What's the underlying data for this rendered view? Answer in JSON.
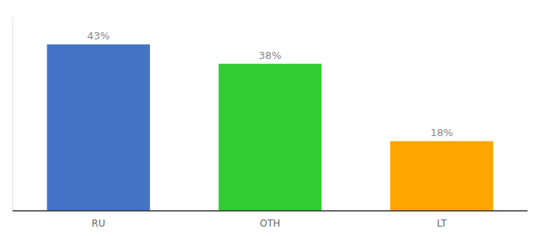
{
  "chart_data": {
    "type": "bar",
    "categories": [
      "RU",
      "OTH",
      "LT"
    ],
    "values": [
      43,
      38,
      18
    ],
    "value_labels": [
      "43%",
      "38%",
      "18%"
    ],
    "colors": [
      "#4472C4",
      "#33CC33",
      "#FFA500"
    ],
    "ylim": [
      0,
      50
    ],
    "data_labels": true,
    "tick_labels": "x",
    "grid": false
  }
}
